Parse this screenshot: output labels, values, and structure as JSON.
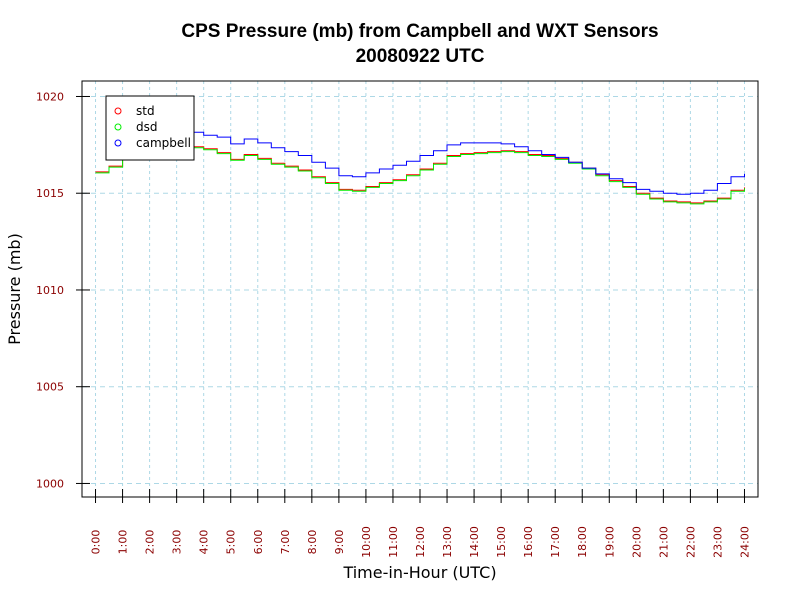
{
  "chart_data": {
    "type": "line",
    "title": "CPS Pressure (mb) from Campbell and WXT Sensors",
    "subtitle": "20080922  UTC",
    "xlabel": "Time-in-Hour (UTC)",
    "ylabel": "Pressure (mb)",
    "xlim": [
      -0.5,
      24.5
    ],
    "ylim": [
      999.3,
      1020.8
    ],
    "grid": true,
    "legend_position": "top-left",
    "x_ticks": [
      0,
      1,
      2,
      3,
      4,
      5,
      6,
      7,
      8,
      9,
      10,
      11,
      12,
      13,
      14,
      15,
      16,
      17,
      18,
      19,
      20,
      21,
      22,
      23,
      24
    ],
    "x_tick_labels": [
      "0:00",
      "1:00",
      "2:00",
      "3:00",
      "4:00",
      "5:00",
      "6:00",
      "7:00",
      "8:00",
      "9:00",
      "10:00",
      "11:00",
      "12:00",
      "13:00",
      "14:00",
      "15:00",
      "16:00",
      "17:00",
      "18:00",
      "19:00",
      "20:00",
      "21:00",
      "22:00",
      "23:00",
      "24:00"
    ],
    "y_ticks": [
      1000,
      1005,
      1010,
      1015,
      1020
    ],
    "y_tick_labels": [
      "1000",
      "1005",
      "1010",
      "1015",
      "1020"
    ],
    "series": [
      {
        "name": "std",
        "color": "#ff0000",
        "x": [
          0,
          0.5,
          1,
          1.5,
          2,
          2.5,
          3,
          3.5,
          4,
          4.5,
          5,
          5.5,
          6,
          6.5,
          7,
          7.5,
          8,
          8.5,
          9,
          9.5,
          10,
          10.5,
          11,
          11.5,
          12,
          12.5,
          13,
          13.5,
          14,
          14.5,
          15,
          15.5,
          16,
          16.5,
          17,
          17.5,
          18,
          18.5,
          19,
          19.5,
          20,
          20.5,
          21,
          21.5,
          22,
          22.5,
          23,
          23.5,
          24
        ],
        "y": [
          1016.1,
          1016.4,
          1016.8,
          1017.1,
          1017.3,
          1017.4,
          1017.45,
          1017.4,
          1017.3,
          1017.1,
          1016.75,
          1017.0,
          1016.8,
          1016.55,
          1016.4,
          1016.2,
          1015.85,
          1015.55,
          1015.2,
          1015.15,
          1015.35,
          1015.55,
          1015.7,
          1015.95,
          1016.25,
          1016.55,
          1016.95,
          1017.05,
          1017.1,
          1017.15,
          1017.2,
          1017.15,
          1017.0,
          1016.95,
          1016.8,
          1016.6,
          1016.3,
          1015.95,
          1015.65,
          1015.35,
          1015.0,
          1014.75,
          1014.6,
          1014.55,
          1014.5,
          1014.6,
          1014.75,
          1015.15,
          1015.3
        ]
      },
      {
        "name": "dsd",
        "color": "#00ee00",
        "x": [
          0,
          0.5,
          1,
          1.5,
          2,
          2.5,
          3,
          3.5,
          4,
          4.5,
          5,
          5.5,
          6,
          6.5,
          7,
          7.5,
          8,
          8.5,
          9,
          9.5,
          10,
          10.5,
          11,
          11.5,
          12,
          12.5,
          13,
          13.5,
          14,
          14.5,
          15,
          15.5,
          16,
          16.5,
          17,
          17.5,
          18,
          18.5,
          19,
          19.5,
          20,
          20.5,
          21,
          21.5,
          22,
          22.5,
          23,
          23.5,
          24
        ],
        "y": [
          1016.05,
          1016.35,
          1016.75,
          1017.05,
          1017.25,
          1017.35,
          1017.4,
          1017.35,
          1017.25,
          1017.05,
          1016.7,
          1016.95,
          1016.75,
          1016.5,
          1016.35,
          1016.15,
          1015.8,
          1015.5,
          1015.15,
          1015.1,
          1015.3,
          1015.5,
          1015.65,
          1015.9,
          1016.2,
          1016.5,
          1016.9,
          1017.0,
          1017.05,
          1017.1,
          1017.15,
          1017.1,
          1016.95,
          1016.9,
          1016.75,
          1016.55,
          1016.25,
          1015.9,
          1015.6,
          1015.3,
          1014.95,
          1014.7,
          1014.55,
          1014.5,
          1014.45,
          1014.55,
          1014.7,
          1015.1,
          1015.25
        ]
      },
      {
        "name": "campbell",
        "color": "#0000ff",
        "x": [
          0,
          0.5,
          1,
          1.5,
          2,
          2.5,
          3,
          3.5,
          4,
          4.5,
          5,
          5.5,
          6,
          6.5,
          7,
          7.5,
          8,
          8.5,
          9,
          9.5,
          10,
          10.5,
          11,
          11.5,
          12,
          12.5,
          13,
          13.5,
          14,
          14.5,
          15,
          15.5,
          16,
          16.5,
          17,
          17.5,
          18,
          18.5,
          19,
          19.5,
          20,
          20.5,
          21,
          21.5,
          22,
          22.5,
          23,
          23.5,
          24
        ],
        "y": [
          null,
          null,
          null,
          null,
          1018.1,
          1018.2,
          1018.2,
          1018.15,
          1018.0,
          1017.9,
          1017.55,
          1017.8,
          1017.6,
          1017.35,
          1017.15,
          1016.95,
          1016.6,
          1016.3,
          1015.9,
          1015.85,
          1016.05,
          1016.25,
          1016.45,
          1016.65,
          1016.95,
          1017.2,
          1017.5,
          1017.6,
          1017.6,
          1017.6,
          1017.55,
          1017.4,
          1017.2,
          1017.0,
          1016.85,
          1016.6,
          1016.3,
          1016.0,
          1015.75,
          1015.55,
          1015.2,
          1015.1,
          1015.0,
          1014.95,
          1015.0,
          1015.15,
          1015.5,
          1015.85,
          1016.0
        ]
      }
    ],
    "legend": [
      {
        "label": "std",
        "color": "#ff0000"
      },
      {
        "label": "dsd",
        "color": "#00ee00"
      },
      {
        "label": "campbell",
        "color": "#0000ff"
      }
    ]
  }
}
